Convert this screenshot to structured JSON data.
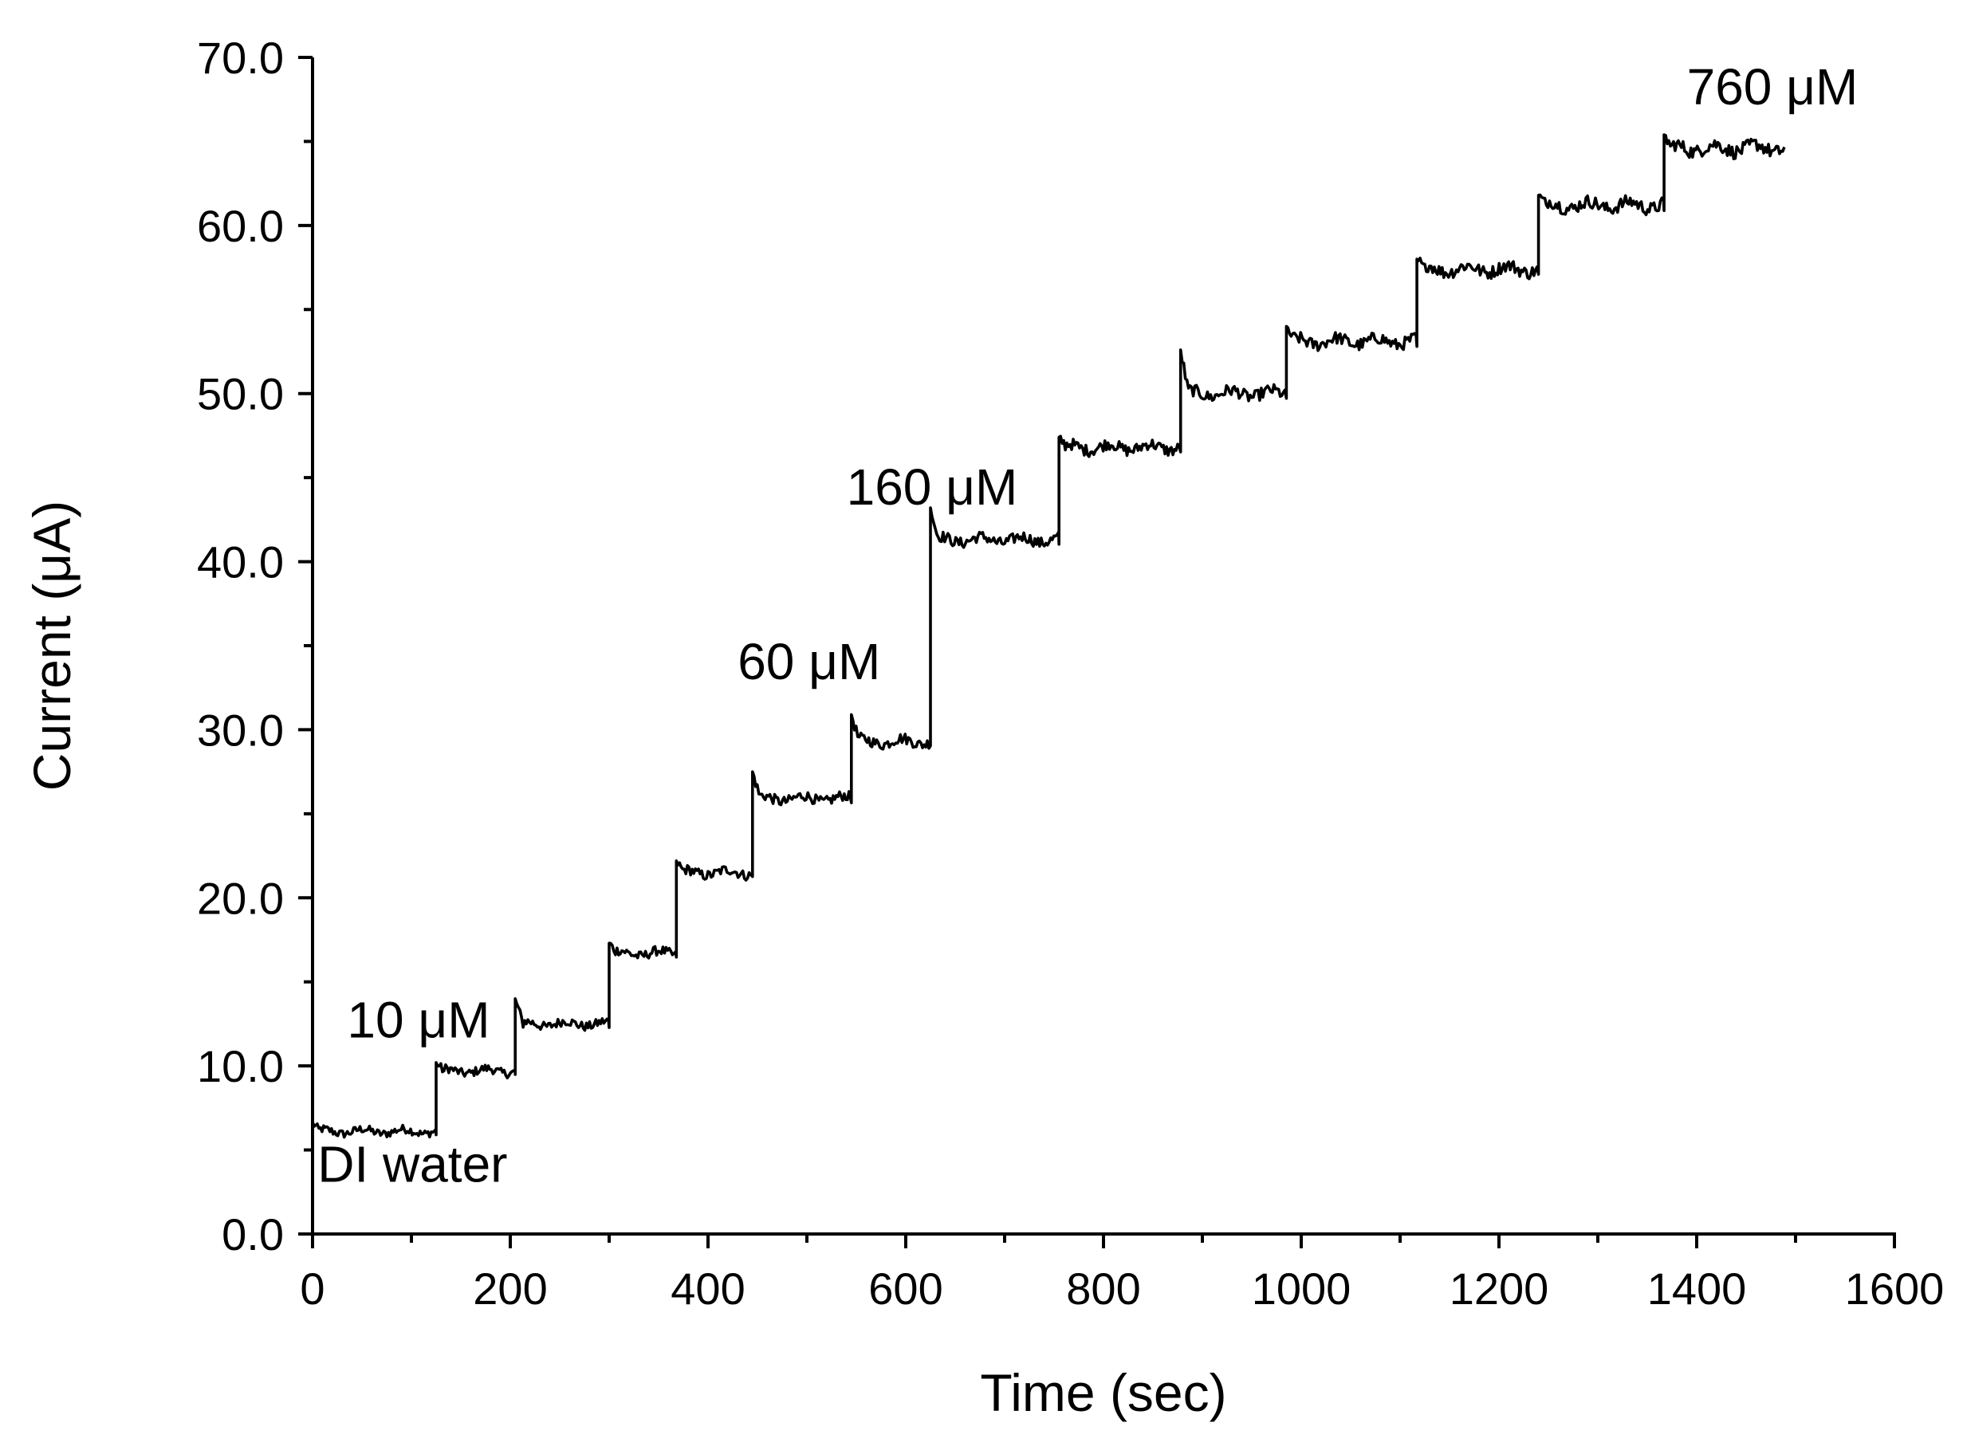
{
  "chart_data": {
    "type": "line",
    "title": "",
    "xlabel": "Time (sec)",
    "ylabel": "Current (μA)",
    "xlim": [
      0,
      1600
    ],
    "ylim": [
      0,
      70
    ],
    "x_major_ticks": [
      0,
      200,
      400,
      600,
      800,
      1000,
      1200,
      1400,
      1600
    ],
    "x_minor_step": 100,
    "y_major_ticks": [
      0,
      10,
      20,
      30,
      40,
      50,
      60,
      70
    ],
    "y_minor_step": 5,
    "x_tick_labels": [
      "0",
      "200",
      "400",
      "600",
      "800",
      "1000",
      "1200",
      "1400",
      "1600"
    ],
    "y_tick_labels": [
      "0.0",
      "10.0",
      "20.0",
      "30.0",
      "40.0",
      "50.0",
      "60.0",
      "70.0"
    ],
    "grid": false,
    "color": "#000000",
    "series": [
      {
        "name": "Current",
        "steps": [
          {
            "start": 0,
            "end": 125,
            "level": 6.1,
            "spike": 6.6
          },
          {
            "start": 125,
            "end": 205,
            "level": 9.7,
            "spike": 10.2
          },
          {
            "start": 205,
            "end": 300,
            "level": 12.5,
            "spike": 14.0
          },
          {
            "start": 300,
            "end": 368,
            "level": 16.7,
            "spike": 17.3
          },
          {
            "start": 368,
            "end": 445,
            "level": 21.5,
            "spike": 22.2
          },
          {
            "start": 445,
            "end": 545,
            "level": 25.9,
            "spike": 27.5
          },
          {
            "start": 545,
            "end": 625,
            "level": 29.3,
            "spike": 30.9
          },
          {
            "start": 625,
            "end": 755,
            "level": 41.3,
            "spike": 43.2
          },
          {
            "start": 755,
            "end": 878,
            "level": 46.8,
            "spike": 47.4
          },
          {
            "start": 878,
            "end": 985,
            "level": 50.0,
            "spike": 52.6
          },
          {
            "start": 985,
            "end": 1117,
            "level": 53.1,
            "spike": 54.0
          },
          {
            "start": 1117,
            "end": 1240,
            "level": 57.4,
            "spike": 58.0
          },
          {
            "start": 1240,
            "end": 1367,
            "level": 61.2,
            "spike": 61.8
          },
          {
            "start": 1367,
            "end": 1490,
            "level": 64.6,
            "spike": 65.4
          }
        ]
      }
    ],
    "annotations": [
      {
        "text": "DI water",
        "x": 5,
        "y": 3.1
      },
      {
        "text": "10 μM",
        "x": 35,
        "y": 11.7
      },
      {
        "text": "60 μM",
        "x": 430,
        "y": 33.0
      },
      {
        "text": "160 μM",
        "x": 540,
        "y": 43.4
      },
      {
        "text": "760 μM",
        "x": 1390,
        "y": 67.2
      }
    ]
  }
}
